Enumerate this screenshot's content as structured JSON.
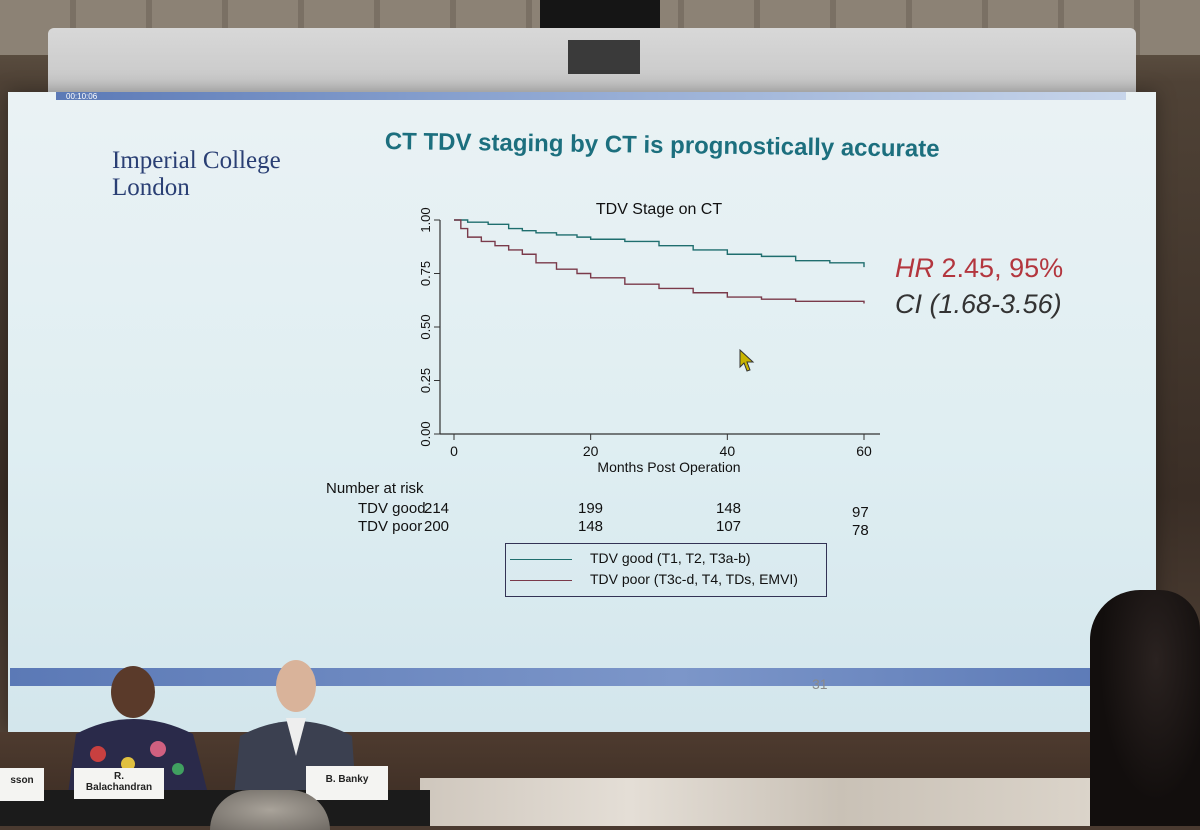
{
  "slide": {
    "timer": "00:10:06",
    "logo": {
      "line1": "Imperial College",
      "line2": "London"
    },
    "title": "CT TDV staging by CT is prognostically accurate",
    "hr": {
      "hr_label": "HR",
      "hr_value": "2.45, 95%",
      "ci_label": "CI",
      "ci_value": "(1.68-3.56)"
    },
    "slide_number": "31"
  },
  "chart_data": {
    "type": "line",
    "title": "TDV Stage on CT",
    "xlabel": "Months Post Operation",
    "ylabel": "",
    "xlim": [
      0,
      60
    ],
    "ylim": [
      0,
      1
    ],
    "x_ticks": [
      "0",
      "20",
      "40",
      "60"
    ],
    "y_ticks": [
      "0.00",
      "0.25",
      "0.50",
      "0.75",
      "1.00"
    ],
    "series": [
      {
        "name": "TDV good (T1, T2, T3a-b)",
        "color": "#1f6e6e",
        "x": [
          0,
          2,
          5,
          8,
          10,
          12,
          15,
          18,
          20,
          25,
          30,
          35,
          40,
          45,
          50,
          55,
          60
        ],
        "y": [
          1.0,
          0.99,
          0.98,
          0.96,
          0.95,
          0.94,
          0.93,
          0.92,
          0.91,
          0.9,
          0.88,
          0.86,
          0.84,
          0.83,
          0.81,
          0.8,
          0.78
        ]
      },
      {
        "name": "TDV poor (T3c-d, T4, TDs, EMVI)",
        "color": "#7a3a4a",
        "x": [
          0,
          1,
          2,
          4,
          6,
          8,
          10,
          12,
          15,
          18,
          20,
          25,
          30,
          35,
          40,
          45,
          50,
          55,
          60
        ],
        "y": [
          1.0,
          0.96,
          0.92,
          0.9,
          0.88,
          0.86,
          0.84,
          0.8,
          0.77,
          0.75,
          0.73,
          0.7,
          0.68,
          0.66,
          0.64,
          0.63,
          0.62,
          0.62,
          0.61
        ]
      }
    ],
    "risk_table": {
      "heading": "Number at risk",
      "rows": [
        {
          "label": "TDV good",
          "values": [
            "214",
            "199",
            "148",
            "97"
          ]
        },
        {
          "label": "TDV poor",
          "values": [
            "200",
            "148",
            "107",
            "78"
          ]
        }
      ]
    },
    "legend_position": "bottom"
  },
  "panel": {
    "names": [
      "sson",
      "R.\nBalachandran",
      "B. Banky"
    ]
  }
}
